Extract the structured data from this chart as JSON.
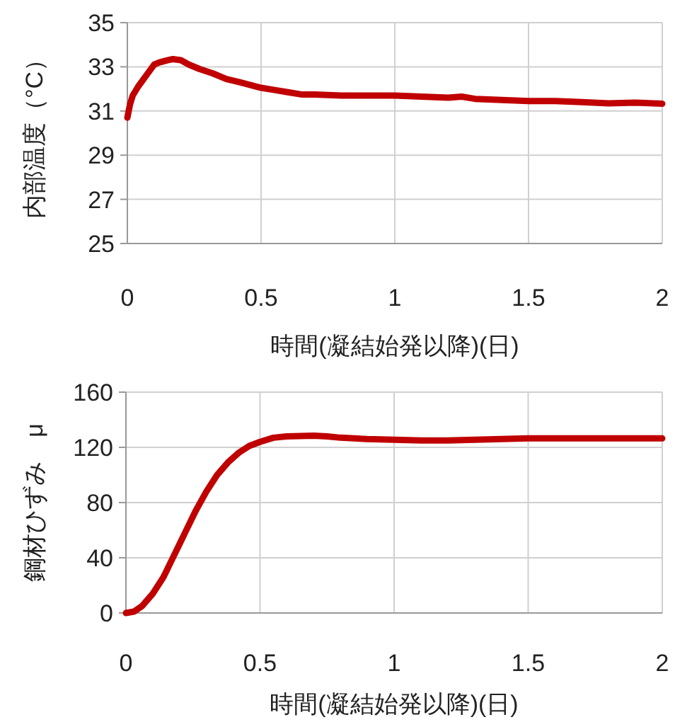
{
  "chart_data": [
    {
      "type": "line",
      "xlabel": "時間(凝結始発以降)(日)",
      "ylabel": "内部温度（°C）",
      "xlim": [
        0,
        2
      ],
      "xticks": [
        0,
        0.5,
        1,
        1.5,
        2
      ],
      "ylim": [
        25,
        35
      ],
      "yticks": [
        25,
        27,
        29,
        31,
        33,
        35
      ],
      "grid": true,
      "marker": "none",
      "line_style": "solid",
      "series": [
        {
          "color": "#c00000",
          "x": [
            0,
            0.01,
            0.02,
            0.04,
            0.07,
            0.1,
            0.12,
            0.15,
            0.17,
            0.2,
            0.23,
            0.27,
            0.32,
            0.37,
            0.42,
            0.5,
            0.55,
            0.6,
            0.65,
            0.7,
            0.8,
            0.9,
            1.0,
            1.1,
            1.2,
            1.25,
            1.3,
            1.4,
            1.5,
            1.6,
            1.7,
            1.8,
            1.9,
            2.0
          ],
          "values": [
            30.7,
            31.3,
            31.7,
            32.1,
            32.6,
            33.1,
            33.2,
            33.3,
            33.35,
            33.3,
            33.1,
            32.9,
            32.7,
            32.45,
            32.3,
            32.05,
            31.95,
            31.85,
            31.75,
            31.75,
            31.7,
            31.7,
            31.7,
            31.65,
            31.6,
            31.65,
            31.55,
            31.5,
            31.45,
            31.45,
            31.4,
            31.35,
            31.38,
            31.33
          ]
        }
      ]
    },
    {
      "type": "line",
      "xlabel": "時間(凝結始発以降)(日)",
      "ylabel": "鋼材ひずみ　μ",
      "xlim": [
        0,
        2
      ],
      "xticks": [
        0,
        0.5,
        1,
        1.5,
        2
      ],
      "ylim": [
        0,
        160
      ],
      "yticks": [
        0,
        40,
        80,
        120,
        160
      ],
      "grid": true,
      "marker": "none",
      "line_style": "solid",
      "series": [
        {
          "color": "#c00000",
          "x": [
            0,
            0.03,
            0.06,
            0.1,
            0.14,
            0.18,
            0.22,
            0.26,
            0.3,
            0.34,
            0.38,
            0.42,
            0.46,
            0.5,
            0.55,
            0.6,
            0.7,
            0.75,
            0.8,
            0.9,
            1.0,
            1.1,
            1.2,
            1.3,
            1.4,
            1.5,
            1.6,
            1.8,
            2.0
          ],
          "values": [
            0,
            1,
            5,
            14,
            26,
            42,
            58,
            74,
            88,
            100,
            109,
            116,
            121,
            124,
            127,
            128,
            128.5,
            128,
            127,
            126,
            125.5,
            125,
            125,
            125.5,
            126,
            126.5,
            126.5,
            126.5,
            126.5
          ]
        }
      ]
    }
  ]
}
